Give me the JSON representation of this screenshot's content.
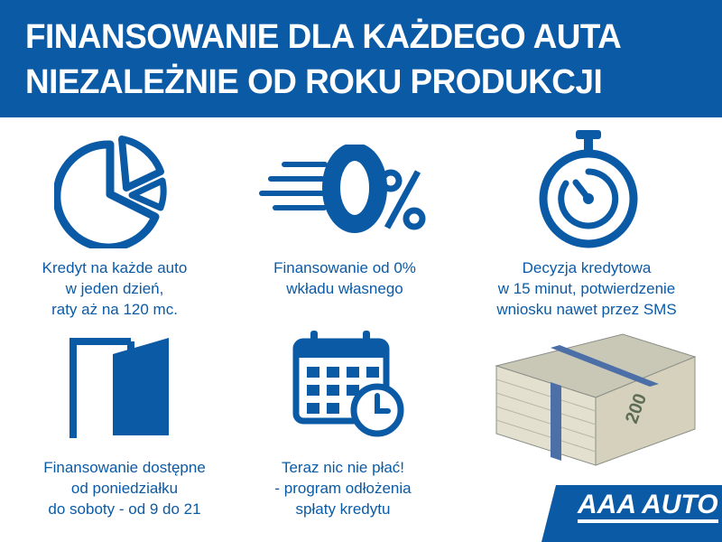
{
  "header": {
    "line1": "FINANSOWANIE DLA KAŻDEGO AUTA",
    "line2": "NIEZALEŻNIE OD ROKU PRODUKCJI"
  },
  "features": [
    {
      "icon": "pie-chart-icon",
      "lines": [
        "Kredyt na każde auto",
        "w jeden dzień,",
        "raty aż na 120 mc."
      ]
    },
    {
      "icon": "zero-percent-icon",
      "lines": [
        "Finansowanie od 0%",
        "wkładu własnego"
      ]
    },
    {
      "icon": "stopwatch-icon",
      "lines": [
        "Decyzja kredytowa",
        "w 15 minut, potwierdzenie",
        "wniosku nawet przez SMS"
      ]
    },
    {
      "icon": "door-icon",
      "lines": [
        "Finansowanie dostępne",
        "od poniedziałku",
        "do soboty - od 9 do 21"
      ]
    },
    {
      "icon": "calendar-clock-icon",
      "lines": [
        "Teraz nic nie płać!",
        "- program odłożenia",
        "spłaty kredytu"
      ]
    }
  ],
  "money_banknote": "200",
  "logo": "AAA AUTO",
  "colors": {
    "brand": "#0b5aa6"
  }
}
